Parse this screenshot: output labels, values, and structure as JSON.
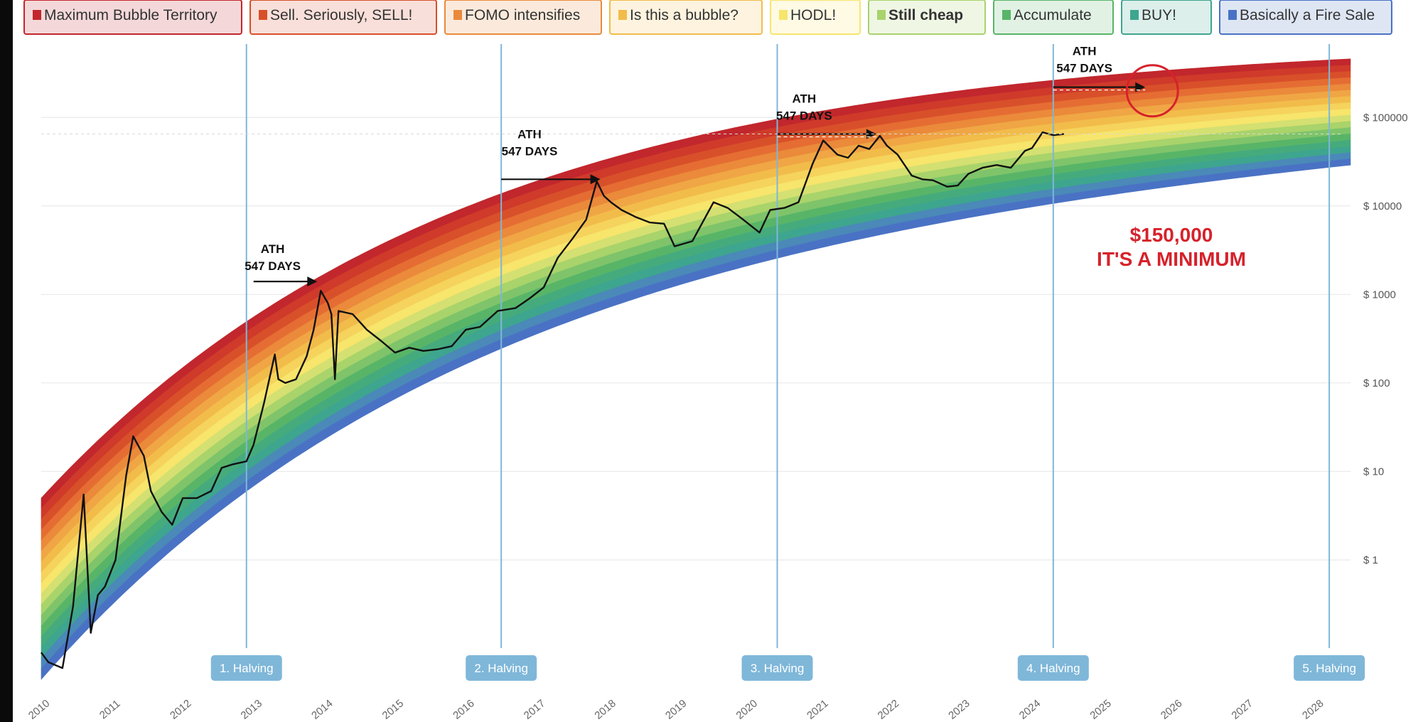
{
  "chart_data": {
    "type": "line",
    "y_scale": "log",
    "ylim": [
      0.05,
      700000
    ],
    "xlim": [
      2010.0,
      2028.5
    ],
    "grid": true,
    "legend": [
      {
        "label": "Maximum Bubble Territory",
        "color": "#c1272d"
      },
      {
        "label": "Sell. Seriously, SELL!",
        "color": "#d8502a"
      },
      {
        "label": "FOMO intensifies",
        "color": "#ea8a3a"
      },
      {
        "label": "Is this a bubble?",
        "color": "#f2bc4a"
      },
      {
        "label": "HODL!",
        "color": "#f7e56c"
      },
      {
        "label": "Still cheap",
        "color": "#a9d36b"
      },
      {
        "label": "Accumulate",
        "color": "#58b568"
      },
      {
        "label": "BUY!",
        "color": "#3ea58e"
      },
      {
        "label": "Basically a Fire Sale",
        "color": "#4a72c4"
      }
    ],
    "y_ticks": [
      {
        "value": 1,
        "label": "$ 1"
      },
      {
        "value": 10,
        "label": "$ 10"
      },
      {
        "value": 100,
        "label": "$ 100"
      },
      {
        "value": 1000,
        "label": "$ 1000"
      },
      {
        "value": 10000,
        "label": "$ 10000"
      },
      {
        "value": 100000,
        "label": "$ 100000"
      }
    ],
    "x_ticks": [
      {
        "value": 2010.0,
        "label": "2010"
      },
      {
        "value": 2011.0,
        "label": "2011"
      },
      {
        "value": 2012.0,
        "label": "2012"
      },
      {
        "value": 2013.0,
        "label": "2013"
      },
      {
        "value": 2014.0,
        "label": "2014"
      },
      {
        "value": 2015.0,
        "label": "2015"
      },
      {
        "value": 2016.0,
        "label": "2016"
      },
      {
        "value": 2017.0,
        "label": "2017"
      },
      {
        "value": 2018.0,
        "label": "2018"
      },
      {
        "value": 2019.0,
        "label": "2019"
      },
      {
        "value": 2020.0,
        "label": "2020"
      },
      {
        "value": 2021.0,
        "label": "2021"
      },
      {
        "value": 2022.0,
        "label": "2022"
      },
      {
        "value": 2023.0,
        "label": "2023"
      },
      {
        "value": 2024.0,
        "label": "2024"
      },
      {
        "value": 2025.0,
        "label": "2025"
      },
      {
        "value": 2026.0,
        "label": "2026"
      },
      {
        "value": 2027.0,
        "label": "2027"
      },
      {
        "value": 2028.0,
        "label": "2028"
      }
    ],
    "halvings": [
      {
        "x": 2012.9,
        "label": "1. Halving"
      },
      {
        "x": 2016.5,
        "label": "2. Halving"
      },
      {
        "x": 2020.4,
        "label": "3. Halving"
      },
      {
        "x": 2024.3,
        "label": "4. Halving"
      },
      {
        "x": 2028.2,
        "label": "5. Halving"
      }
    ],
    "annotations": [
      {
        "line1": "ATH",
        "line2": "547 DAYS",
        "from": [
          2013.0,
          1400
        ],
        "to": [
          2013.9,
          1400
        ]
      },
      {
        "line1": "ATH",
        "line2": "547 DAYS",
        "from": [
          2016.5,
          20000
        ],
        "to": [
          2017.9,
          20000
        ]
      },
      {
        "line1": "ATH",
        "line2": "547 DAYS",
        "from": [
          2020.4,
          65000
        ],
        "to": [
          2021.8,
          65000
        ]
      },
      {
        "line1": "ATH",
        "line2": "547 DAYS",
        "from": [
          2024.3,
          220000
        ],
        "to": [
          2025.6,
          220000
        ]
      }
    ],
    "target_circle": {
      "x": 2025.7,
      "y": 200000
    },
    "callout": {
      "line1": "$150,000",
      "line2": "IT'S A MINIMUM"
    },
    "series": [
      {
        "type": "line",
        "color": "#111111",
        "x": [
          2010.0,
          2010.1,
          2010.3,
          2010.45,
          2010.6,
          2010.7,
          2010.8,
          2010.9,
          2011.05,
          2011.2,
          2011.3,
          2011.45,
          2011.55,
          2011.7,
          2011.85,
          2012.0,
          2012.2,
          2012.4,
          2012.55,
          2012.7,
          2012.9,
          2013.0,
          2013.15,
          2013.3,
          2013.35,
          2013.45,
          2013.6,
          2013.75,
          2013.85,
          2013.95,
          2014.05,
          2014.1,
          2014.15,
          2014.2,
          2014.4,
          2014.6,
          2014.8,
          2015.0,
          2015.2,
          2015.4,
          2015.6,
          2015.8,
          2016.0,
          2016.2,
          2016.45,
          2016.7,
          2016.9,
          2017.1,
          2017.3,
          2017.5,
          2017.7,
          2017.85,
          2017.95,
          2018.05,
          2018.2,
          2018.4,
          2018.6,
          2018.8,
          2018.95,
          2019.2,
          2019.5,
          2019.7,
          2019.9,
          2020.15,
          2020.3,
          2020.5,
          2020.7,
          2020.9,
          2021.05,
          2021.25,
          2021.4,
          2021.55,
          2021.7,
          2021.85,
          2021.95,
          2022.1,
          2022.3,
          2022.45,
          2022.6,
          2022.8,
          2022.95,
          2023.1,
          2023.3,
          2023.5,
          2023.7,
          2023.9,
          2024.0,
          2024.15,
          2024.3,
          2024.45
        ],
        "y": [
          0.09,
          0.07,
          0.06,
          0.3,
          5.5,
          0.15,
          0.4,
          0.5,
          1.0,
          9,
          25,
          15,
          6,
          3.5,
          2.5,
          5,
          5,
          6,
          11,
          12,
          13,
          20,
          60,
          210,
          110,
          100,
          110,
          200,
          400,
          1100,
          800,
          600,
          110,
          650,
          600,
          400,
          300,
          220,
          250,
          230,
          240,
          260,
          400,
          430,
          650,
          700,
          900,
          1200,
          2600,
          4200,
          7000,
          19000,
          13000,
          11000,
          9000,
          7500,
          6500,
          6300,
          3500,
          4000,
          11000,
          9500,
          7200,
          5000,
          9000,
          9500,
          11000,
          30000,
          55000,
          38000,
          35000,
          48000,
          44000,
          62000,
          48000,
          38000,
          22000,
          20000,
          19500,
          16500,
          17000,
          23000,
          27000,
          29000,
          27000,
          42000,
          45000,
          68000,
          63000,
          65000
        ]
      }
    ]
  }
}
